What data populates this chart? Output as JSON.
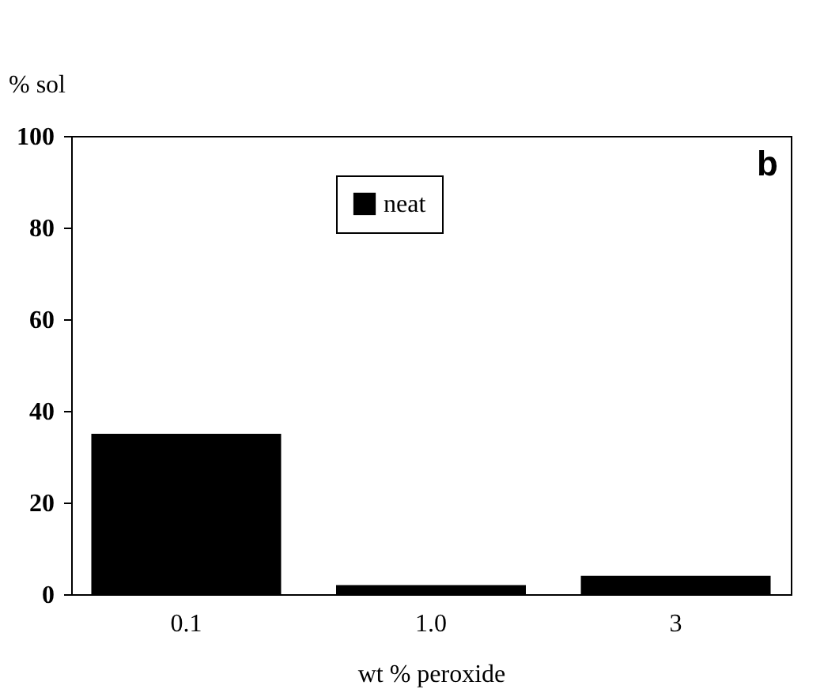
{
  "chart_data": {
    "type": "bar",
    "ylabel": "% sol",
    "xlabel": "wt % peroxide",
    "categories": [
      "0.1",
      "1.0",
      "3"
    ],
    "series": [
      {
        "name": "neat",
        "color": "#000000",
        "values": [
          35,
          2,
          4
        ]
      }
    ],
    "ylim": [
      0,
      100
    ],
    "yticks": [
      0,
      20,
      40,
      60,
      80,
      100
    ],
    "legend": "top",
    "grid": false,
    "annotations": [
      "b"
    ]
  }
}
